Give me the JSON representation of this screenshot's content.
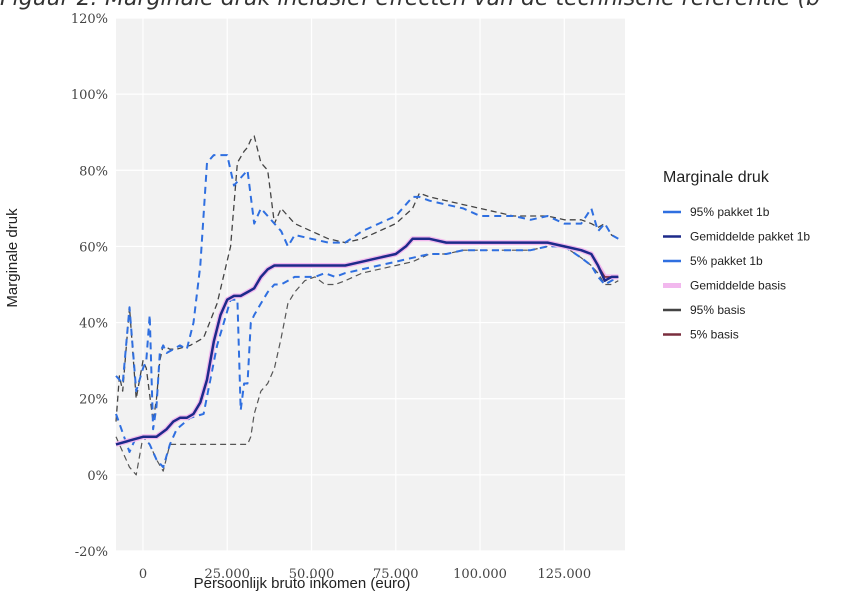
{
  "figure_title": "Figuur 2: Marginale druk inclusief effecten van de technische referentie (b",
  "chart_data": {
    "type": "line",
    "xlabel": "Persoonlijk bruto inkomen (euro)",
    "ylabel": "Marginale druk",
    "xlim": [
      -8000,
      143000
    ],
    "ylim": [
      -20,
      120
    ],
    "x_ticks": [
      0,
      25000,
      50000,
      75000,
      100000,
      125000
    ],
    "x_tick_labels": [
      "0",
      "25.000",
      "50.000",
      "75.000",
      "100.000",
      "125.000"
    ],
    "y_ticks": [
      -20,
      0,
      20,
      40,
      60,
      80,
      100,
      120
    ],
    "y_tick_labels": [
      "-20%",
      "0%",
      "20%",
      "40%",
      "60%",
      "80%",
      "100%",
      "120%"
    ],
    "grid": true,
    "legend_title": "Marginale druk",
    "legend_position": "right",
    "series": [
      {
        "name": "95% pakket 1b",
        "color": "#2f6fe0",
        "width": 2,
        "dash": "7,5",
        "x": [
          -8000,
          -6000,
          -4000,
          -2000,
          0,
          1000,
          2000,
          3000,
          4000,
          5000,
          6000,
          7000,
          9000,
          11000,
          13000,
          15000,
          17000,
          19000,
          21000,
          23000,
          25000,
          27000,
          29000,
          31000,
          33000,
          35000,
          37000,
          39000,
          41000,
          43000,
          45000,
          50000,
          55000,
          60000,
          65000,
          70000,
          75000,
          78000,
          80000,
          82000,
          85000,
          90000,
          95000,
          100000,
          105000,
          110000,
          115000,
          120000,
          125000,
          130000,
          133000,
          135000,
          137000,
          139000,
          141000
        ],
        "y": [
          26,
          24,
          44,
          22,
          28,
          30,
          42,
          12,
          18,
          32,
          34,
          32,
          33,
          34,
          33,
          40,
          55,
          82,
          84,
          84,
          84,
          76,
          78,
          80,
          66,
          70,
          68,
          66,
          64,
          60,
          63,
          62,
          61,
          61,
          64,
          66,
          68,
          71,
          73,
          73,
          72,
          71,
          70,
          68,
          68,
          68,
          67,
          68,
          66,
          66,
          70,
          64,
          66,
          63,
          62
        ]
      },
      {
        "name": "Gemiddelde pakket 1b",
        "color": "#1d2a8a",
        "width": 2.5,
        "dash": "",
        "x": [
          -8000,
          -4000,
          0,
          4000,
          7000,
          9000,
          11000,
          13000,
          15000,
          17000,
          19000,
          21000,
          23000,
          25000,
          27000,
          29000,
          31000,
          33000,
          35000,
          37000,
          39000,
          41000,
          43000,
          45000,
          50000,
          55000,
          60000,
          65000,
          70000,
          75000,
          78000,
          80000,
          82000,
          85000,
          90000,
          95000,
          100000,
          105000,
          110000,
          115000,
          120000,
          125000,
          130000,
          133000,
          135000,
          137000,
          139000,
          141000
        ],
        "y": [
          8,
          9,
          10,
          10,
          12,
          14,
          15,
          15,
          16,
          19,
          25,
          35,
          42,
          46,
          47,
          47,
          48,
          49,
          52,
          54,
          55,
          55,
          55,
          55,
          55,
          55,
          55,
          56,
          57,
          58,
          60,
          62,
          62,
          62,
          61,
          61,
          61,
          61,
          61,
          61,
          61,
          60,
          59,
          58,
          55,
          51,
          52,
          52
        ]
      },
      {
        "name": "5% pakket 1b",
        "color": "#2f6fe0",
        "width": 2,
        "dash": "7,5",
        "x": [
          -8000,
          -4000,
          -2000,
          0,
          2000,
          4000,
          6000,
          8000,
          10000,
          14000,
          18000,
          22000,
          26000,
          28000,
          29000,
          30000,
          31000,
          32000,
          33000,
          35000,
          37000,
          39000,
          41000,
          43000,
          45000,
          48000,
          51000,
          54000,
          57000,
          60000,
          65000,
          70000,
          75000,
          80000,
          85000,
          90000,
          95000,
          100000,
          105000,
          110000,
          115000,
          120000,
          125000,
          130000,
          133000,
          135000,
          137000,
          139000,
          141000
        ],
        "y": [
          16,
          6,
          10,
          10,
          8,
          4,
          2,
          8,
          12,
          15,
          16,
          34,
          46,
          46,
          17,
          24,
          24,
          40,
          42,
          45,
          48,
          50,
          50,
          51,
          52,
          52,
          52,
          53,
          52,
          53,
          54,
          55,
          56,
          57,
          58,
          58,
          59,
          59,
          59,
          59,
          59,
          60,
          60,
          57,
          55,
          52,
          50,
          51,
          52
        ]
      },
      {
        "name": "Gemiddelde basis",
        "color": "#f2b8ee",
        "width": 5,
        "dash": "",
        "x": [
          -8000,
          -4000,
          0,
          4000,
          7000,
          9000,
          11000,
          13000,
          15000,
          17000,
          19000,
          21000,
          23000,
          25000,
          27000,
          29000,
          31000,
          33000,
          35000,
          37000,
          39000,
          41000,
          43000,
          45000,
          50000,
          55000,
          60000,
          65000,
          70000,
          75000,
          78000,
          80000,
          82000,
          85000,
          90000,
          95000,
          100000,
          105000,
          110000,
          115000,
          120000,
          125000,
          130000,
          133000,
          135000,
          137000,
          139000,
          141000
        ],
        "y": [
          8,
          9,
          10,
          10,
          12,
          14,
          15,
          15,
          16,
          19,
          25,
          35,
          42,
          46,
          47,
          47,
          48,
          49,
          52,
          54,
          55,
          55,
          55,
          55,
          55,
          55,
          55,
          56,
          57,
          58,
          60,
          62,
          62,
          62,
          61,
          61,
          61,
          61,
          61,
          61,
          61,
          60,
          59,
          58,
          55,
          52,
          52,
          52
        ]
      },
      {
        "name": "95% basis",
        "color": "#444444",
        "width": 1.3,
        "dash": "6,4",
        "x": [
          -8000,
          -7000,
          -6000,
          -4000,
          -2000,
          0,
          1000,
          3000,
          4000,
          5000,
          6000,
          8000,
          10000,
          14000,
          18000,
          22000,
          26000,
          28000,
          30000,
          31000,
          32000,
          33000,
          35000,
          37000,
          39000,
          41000,
          43000,
          45000,
          50000,
          55000,
          60000,
          65000,
          70000,
          75000,
          80000,
          82000,
          85000,
          90000,
          95000,
          100000,
          105000,
          110000,
          115000,
          120000,
          125000,
          130000,
          133000,
          135000,
          137000,
          139000,
          141000
        ],
        "y": [
          14,
          26,
          22,
          44,
          20,
          30,
          28,
          14,
          20,
          30,
          34,
          33,
          33,
          34,
          36,
          45,
          60,
          82,
          85,
          86,
          88,
          89,
          82,
          80,
          66,
          70,
          68,
          66,
          64,
          62,
          61,
          62,
          64,
          66,
          70,
          74,
          73,
          72,
          71,
          70,
          69,
          68,
          68,
          68,
          67,
          67,
          66,
          65,
          66,
          63,
          62
        ]
      },
      {
        "name": "5% basis",
        "color": "#7a2e3e",
        "width": 1.6,
        "dash": "",
        "x": [
          -8000,
          -4000,
          0,
          4000,
          7000,
          9000,
          11000,
          13000,
          15000,
          17000,
          19000,
          21000,
          23000,
          25000,
          27000,
          29000,
          31000,
          33000,
          35000,
          37000,
          39000,
          41000,
          43000,
          45000,
          50000,
          55000,
          60000,
          65000,
          70000,
          75000,
          78000,
          80000,
          82000,
          85000,
          90000,
          95000,
          100000,
          105000,
          110000,
          115000,
          120000,
          125000,
          130000,
          133000,
          135000,
          137000,
          139000,
          141000
        ],
        "y": [
          8,
          9,
          10,
          10,
          12,
          14,
          15,
          15,
          16,
          19,
          25,
          35,
          42,
          46,
          47,
          47,
          48,
          49,
          52,
          54,
          55,
          55,
          55,
          55,
          55,
          55,
          55,
          56,
          57,
          58,
          60,
          62,
          62,
          62,
          61,
          61,
          61,
          61,
          61,
          61,
          61,
          60,
          59,
          58,
          55,
          52,
          52,
          52
        ]
      },
      {
        "name": "",
        "legend": false,
        "color": "#555555",
        "width": 1.2,
        "dash": "6,4",
        "x": [
          -8000,
          -4000,
          -2000,
          0,
          2000,
          4000,
          6000,
          8000,
          10000,
          14000,
          18000,
          22000,
          26000,
          28000,
          30000,
          31000,
          32000,
          33000,
          35000,
          37000,
          39000,
          41000,
          43000,
          45000,
          48000,
          51000,
          54000,
          57000,
          60000,
          65000,
          70000,
          75000,
          80000,
          85000,
          90000,
          95000,
          100000,
          105000,
          110000,
          115000,
          120000,
          125000,
          130000,
          133000,
          135000,
          137000,
          139000,
          141000
        ],
        "y": [
          10,
          2,
          0,
          10,
          8,
          4,
          1,
          8,
          8,
          8,
          8,
          8,
          8,
          8,
          8,
          8,
          10,
          16,
          22,
          24,
          28,
          36,
          45,
          48,
          51,
          52,
          50,
          50,
          51,
          53,
          54,
          55,
          56,
          58,
          58,
          59,
          59,
          59,
          59,
          59,
          60,
          60,
          57,
          55,
          53,
          50,
          50,
          51
        ]
      }
    ]
  }
}
